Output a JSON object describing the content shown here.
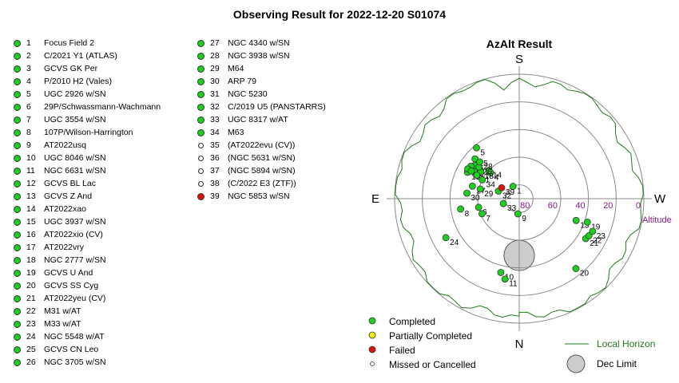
{
  "title": "Observing Result for 2022-12-20 S01074",
  "objects_left": [
    {
      "num": "1",
      "name": "Focus Field 2",
      "status": "completed"
    },
    {
      "num": "2",
      "name": "C/2021 Y1 (ATLAS)",
      "status": "completed"
    },
    {
      "num": "3",
      "name": "GCVS GK Per",
      "status": "completed"
    },
    {
      "num": "4",
      "name": "P/2010 H2 (Vales)",
      "status": "completed"
    },
    {
      "num": "5",
      "name": "UGC 2926 w/SN",
      "status": "completed"
    },
    {
      "num": "6",
      "name": "29P/Schwassmann-Wachmann",
      "status": "completed"
    },
    {
      "num": "7",
      "name": "UGC 3554 w/SN",
      "status": "completed"
    },
    {
      "num": "8",
      "name": "107P/Wilson-Harrington",
      "status": "completed"
    },
    {
      "num": "9",
      "name": "AT2022usq",
      "status": "completed"
    },
    {
      "num": "10",
      "name": "UGC 8046 w/SN",
      "status": "completed"
    },
    {
      "num": "11",
      "name": "NGC 6631 w/SN",
      "status": "completed"
    },
    {
      "num": "12",
      "name": "GCVS BL Lac",
      "status": "completed"
    },
    {
      "num": "13",
      "name": "GCVS Z And",
      "status": "completed"
    },
    {
      "num": "14",
      "name": "AT2022xao",
      "status": "completed"
    },
    {
      "num": "15",
      "name": "UGC 3937 w/SN",
      "status": "completed"
    },
    {
      "num": "16",
      "name": "AT2022xio (CV)",
      "status": "completed"
    },
    {
      "num": "17",
      "name": "AT2022vry",
      "status": "completed"
    },
    {
      "num": "18",
      "name": "NGC 2777 w/SN",
      "status": "completed"
    },
    {
      "num": "19",
      "name": "GCVS U And",
      "status": "completed"
    },
    {
      "num": "20",
      "name": "GCVS SS Cyg",
      "status": "completed"
    },
    {
      "num": "21",
      "name": "AT2022yeu (CV)",
      "status": "completed"
    },
    {
      "num": "22",
      "name": "M31 w/AT",
      "status": "completed"
    },
    {
      "num": "23",
      "name": "M33 w/AT",
      "status": "completed"
    },
    {
      "num": "24",
      "name": "NGC 5548 w/AT",
      "status": "completed"
    },
    {
      "num": "25",
      "name": "GCVS CN Leo",
      "status": "completed"
    },
    {
      "num": "26",
      "name": "NGC 3705 w/SN",
      "status": "completed"
    }
  ],
  "objects_right": [
    {
      "num": "27",
      "name": "NGC 4340 w/SN",
      "status": "completed"
    },
    {
      "num": "28",
      "name": "NGC 3938 w/SN",
      "status": "completed"
    },
    {
      "num": "29",
      "name": "M64",
      "status": "completed"
    },
    {
      "num": "30",
      "name": "ARP 79",
      "status": "completed"
    },
    {
      "num": "31",
      "name": "NGC 5230",
      "status": "completed"
    },
    {
      "num": "32",
      "name": "C/2019 U5 (PANSTARRS)",
      "status": "completed"
    },
    {
      "num": "33",
      "name": "UGC 8317 w/AT",
      "status": "completed"
    },
    {
      "num": "34",
      "name": "M63",
      "status": "completed"
    },
    {
      "num": "35",
      "name": "(AT2022evu (CV))",
      "status": "missed"
    },
    {
      "num": "36",
      "name": "(NGC 5631 w/SN)",
      "status": "missed"
    },
    {
      "num": "37",
      "name": "(NGC 5894 w/SN)",
      "status": "missed"
    },
    {
      "num": "38",
      "name": "(C/2022 E3 (ZTF))",
      "status": "missed"
    },
    {
      "num": "39",
      "name": "NGC 5853 w/SN",
      "status": "failed"
    }
  ],
  "chart_data": {
    "type": "scatter",
    "projection": "polar-altaz",
    "title": "AzAlt Result",
    "directions": {
      "top": "S",
      "bottom": "N",
      "left": "E",
      "right": "W"
    },
    "radial_axis_label": "Altitude",
    "radial_ticks": [
      "80",
      "60",
      "40",
      "20",
      "0"
    ],
    "altitude_rings": [
      80,
      60,
      40,
      20,
      0
    ],
    "grid": true,
    "dec_limit": {
      "az": 0,
      "alt": 49,
      "radius_deg": 11
    },
    "points": [
      {
        "label": "1",
        "az": 153,
        "alt": 80,
        "status": "completed"
      },
      {
        "label": "2",
        "az": 124,
        "alt": 52,
        "status": "completed"
      },
      {
        "label": "3",
        "az": 127,
        "alt": 50,
        "status": "completed"
      },
      {
        "label": "4",
        "az": 132,
        "alt": 62,
        "status": "completed"
      },
      {
        "label": "5",
        "az": 140,
        "alt": 42,
        "status": "completed"
      },
      {
        "label": "6",
        "az": 78,
        "alt": 60,
        "status": "completed"
      },
      {
        "label": "7",
        "az": 68,
        "alt": 61,
        "status": "completed"
      },
      {
        "label": "8",
        "az": 80,
        "alt": 47,
        "status": "completed"
      },
      {
        "label": "9",
        "az": 5,
        "alt": 79,
        "status": "completed"
      },
      {
        "label": "10",
        "az": 14,
        "alt": 35,
        "status": "completed"
      },
      {
        "label": "11",
        "az": 10,
        "alt": 31,
        "status": "completed"
      },
      {
        "label": "12",
        "az": 124,
        "alt": 48,
        "status": "completed"
      },
      {
        "label": "13",
        "az": 291,
        "alt": 46,
        "status": "completed"
      },
      {
        "label": "14",
        "az": 133,
        "alt": 60,
        "status": "completed"
      },
      {
        "label": "15",
        "az": 117,
        "alt": 48,
        "status": "completed"
      },
      {
        "label": "16",
        "az": 120,
        "alt": 47,
        "status": "completed"
      },
      {
        "label": "17",
        "az": 120,
        "alt": 50,
        "status": "completed"
      },
      {
        "label": "18",
        "az": 125,
        "alt": 56,
        "status": "completed"
      },
      {
        "label": "19",
        "az": 289,
        "alt": 38,
        "status": "completed"
      },
      {
        "label": "20",
        "az": 321,
        "alt": 25,
        "status": "completed"
      },
      {
        "label": "21",
        "az": 301,
        "alt": 34,
        "status": "completed"
      },
      {
        "label": "22",
        "az": 298,
        "alt": 33,
        "status": "completed"
      },
      {
        "label": "23",
        "az": 294,
        "alt": 32,
        "status": "completed"
      },
      {
        "label": "24",
        "az": 62,
        "alt": 30,
        "status": "completed"
      },
      {
        "label": "25",
        "az": 132,
        "alt": 47,
        "status": "completed"
      },
      {
        "label": "26",
        "az": 128,
        "alt": 53,
        "status": "completed"
      },
      {
        "label": "27",
        "az": 105,
        "alt": 55,
        "status": "completed"
      },
      {
        "label": "28",
        "az": 133,
        "alt": 51,
        "status": "completed"
      },
      {
        "label": "29",
        "az": 104,
        "alt": 61,
        "status": "completed"
      },
      {
        "label": "30",
        "az": 96,
        "alt": 52,
        "status": "completed"
      },
      {
        "label": "31",
        "az": 119,
        "alt": 55,
        "status": "completed"
      },
      {
        "label": "32",
        "az": 110,
        "alt": 74,
        "status": "completed"
      },
      {
        "label": "33",
        "az": 73,
        "alt": 78,
        "status": "completed"
      },
      {
        "label": "34",
        "az": 117,
        "alt": 60,
        "status": "completed"
      },
      {
        "label": "39",
        "az": 122,
        "alt": 75,
        "status": "failed"
      }
    ],
    "legend": [
      {
        "label": "Completed",
        "status": "completed"
      },
      {
        "label": "Partially Completed",
        "status": "partial"
      },
      {
        "label": "Failed",
        "status": "failed"
      },
      {
        "label": "Missed or Cancelled",
        "status": "missed"
      },
      {
        "label": "Local Horizon",
        "kind": "line"
      },
      {
        "label": "Dec Limit",
        "kind": "circle"
      }
    ],
    "colors": {
      "completed": "#1ed01e",
      "partial": "#f0f000",
      "failed": "#e01010",
      "missed": "#ffffff",
      "horizon": "#1f7a1f",
      "dec_limit_fill": "#cccccc",
      "altitude_tick": "#8b1a8b"
    }
  }
}
